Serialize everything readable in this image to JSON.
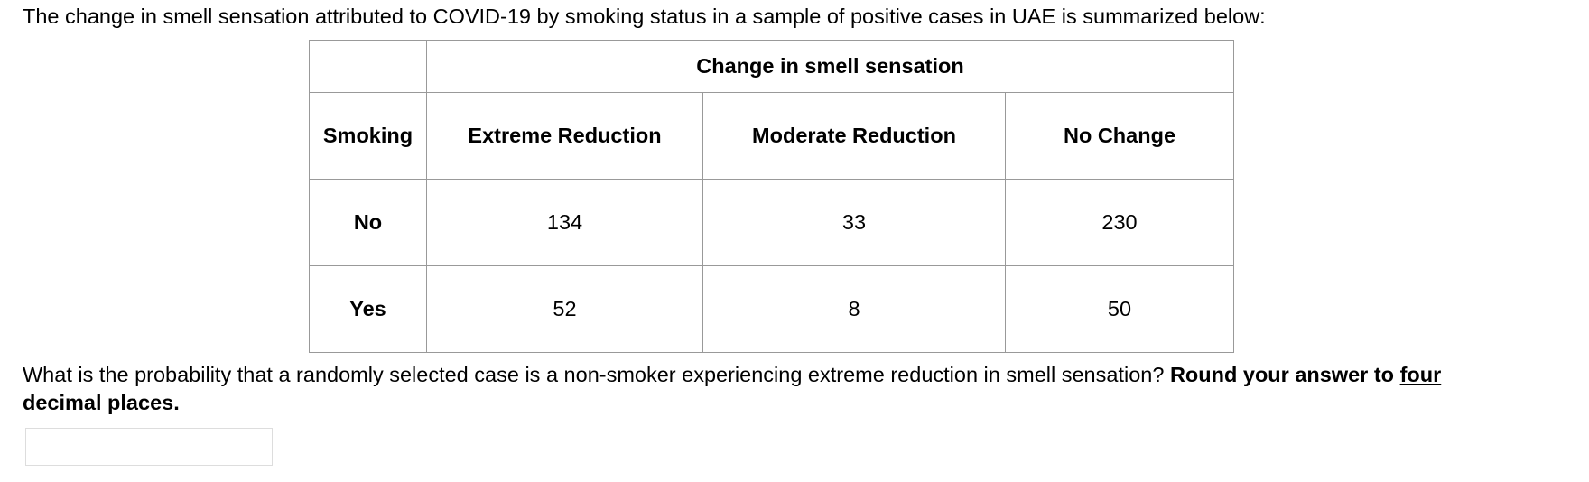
{
  "intro": "The change in smell sensation attributed to COVID-19 by smoking status in a sample of positive cases in UAE is summarized below:",
  "table": {
    "group_header": "Change in smell sensation",
    "columns": [
      "Smoking",
      "Extreme Reduction",
      "Moderate Reduction",
      "No Change"
    ],
    "rows": [
      [
        "No",
        134,
        33,
        230
      ],
      [
        "Yes",
        52,
        8,
        50
      ]
    ]
  },
  "question": {
    "text": "What is the probability that a randomly selected case is a non-smoker experiencing extreme reduction in smell sensation?",
    "bold_lead": "Round your answer to",
    "bold_underlined": "four",
    "bold_tail": "decimal places."
  }
}
